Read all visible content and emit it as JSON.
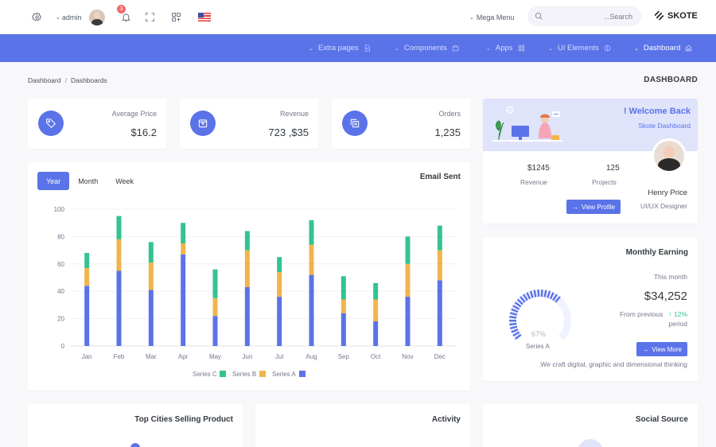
{
  "topbar": {
    "admin_label": "admin",
    "notification_count": "3",
    "mega_menu_label": "Mega Menu",
    "search_placeholder": "...Search",
    "brand": "SKOTE"
  },
  "nav": {
    "items": [
      {
        "label": "Extra pages",
        "icon": "file-icon"
      },
      {
        "label": "Components",
        "icon": "box-icon"
      },
      {
        "label": "Apps",
        "icon": "grid-icon"
      },
      {
        "label": "UI Elements",
        "icon": "toggle-icon"
      },
      {
        "label": "Dashboard",
        "icon": "home-icon"
      }
    ]
  },
  "breadcrumb": {
    "root": "Dashboard",
    "current": "Dashboards"
  },
  "page_title": "DASHBOARD",
  "stats": [
    {
      "label": "Average Price",
      "value": "$16.2",
      "icon": "tag-icon"
    },
    {
      "label": "Revenue",
      "value": "723 ,$35",
      "icon": "archive-icon"
    },
    {
      "label": "Orders",
      "value": "1,235",
      "icon": "copy-icon"
    }
  ],
  "email_card": {
    "title": "Email Sent",
    "tabs": [
      "Year",
      "Month",
      "Week"
    ]
  },
  "chart_data": {
    "type": "bar",
    "stacked": true,
    "categories": [
      "Jan",
      "Feb",
      "Mar",
      "Apr",
      "May",
      "Jun",
      "Jul",
      "Aug",
      "Sep",
      "Oct",
      "Nov",
      "Dec"
    ],
    "ylim": [
      0,
      100
    ],
    "yticks": [
      0,
      20,
      40,
      60,
      80,
      100
    ],
    "grid": true,
    "legend_position": "bottom",
    "series": [
      {
        "name": "Series A",
        "color": "#5b73e8",
        "values": [
          44,
          55,
          41,
          67,
          22,
          43,
          36,
          52,
          24,
          18,
          36,
          48
        ]
      },
      {
        "name": "Series B",
        "color": "#f1b44c",
        "values": [
          13,
          23,
          20,
          8,
          13,
          27,
          18,
          22,
          10,
          16,
          24,
          22
        ]
      },
      {
        "name": "Series C",
        "color": "#34c38f",
        "values": [
          11,
          17,
          15,
          15,
          21,
          14,
          11,
          18,
          17,
          12,
          20,
          18
        ]
      }
    ]
  },
  "welcome": {
    "title": "! Welcome Back",
    "subtitle": "Skote Dashboard",
    "name": "Henry Price",
    "role": "UI/UX Designer",
    "projects_value": "125",
    "projects_label": "Projects",
    "revenue_value": "$1245",
    "revenue_label": "Revenue",
    "button": "View Profile"
  },
  "earning": {
    "title": "Monthly Earning",
    "period_label": "This month",
    "amount": "$34,252",
    "from_previous": "From previous",
    "change": "12%",
    "period_word": "period",
    "gauge_value": 67,
    "gauge_text": "67%",
    "gauge_series": "Series A",
    "button": "View More",
    "footer": ".We craft digital, graphic and dimensional thinking"
  },
  "bottom_cards": {
    "cities": "Top Cities Selling Product",
    "activity": "Activity",
    "social": "Social Source"
  }
}
